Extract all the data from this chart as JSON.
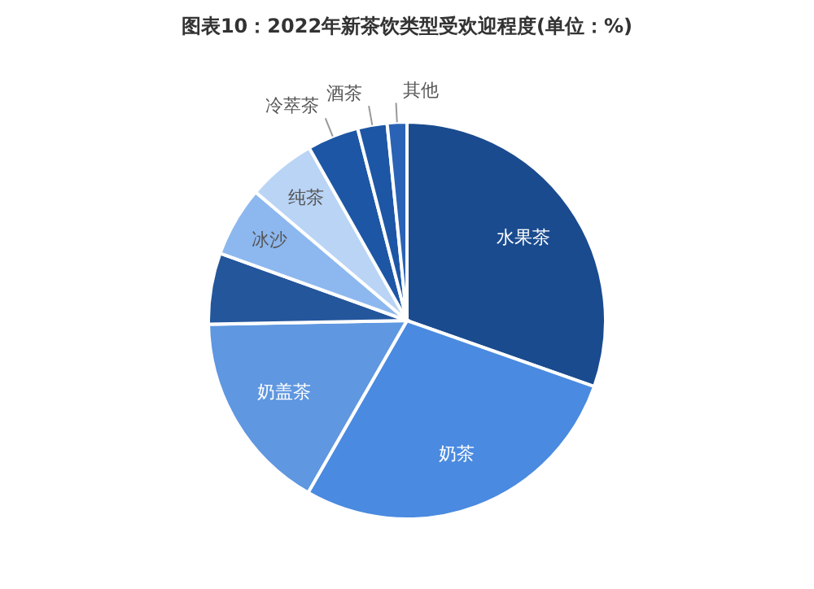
{
  "chart_data": {
    "type": "pie",
    "title": "图表10：2022年新茶饮类型受欢迎程度(单位：%)",
    "categories": [
      "水果茶",
      "奶茶",
      "奶盖茶",
      null,
      "冰沙",
      "纯茶",
      "冷萃茶",
      "酒茶",
      "其他"
    ],
    "values": [
      30.4,
      27.9,
      16.4,
      5.8,
      5.7,
      5.6,
      4.2,
      2.4,
      1.6
    ],
    "colors": [
      "#1a4b8f",
      "#4a8ae0",
      "#5f97e0",
      "#24569c",
      "#8db8ef",
      "#b9d4f5",
      "#1d56a5",
      "#1d56a5",
      "#2a63b5"
    ],
    "legend": false
  }
}
